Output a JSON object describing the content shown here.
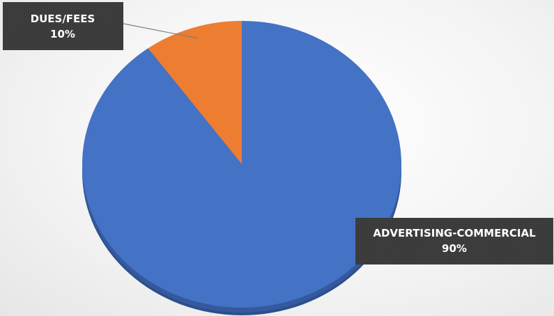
{
  "chart_data": {
    "type": "pie",
    "slices": [
      {
        "name": "DUES/FEES",
        "value": 10,
        "label": "10%",
        "color": "#ED7D31"
      },
      {
        "name": "ADVERTISING-COMMERCIAL",
        "value": 90,
        "label": "90%",
        "color": "#4472C4"
      }
    ],
    "legend": "none"
  }
}
